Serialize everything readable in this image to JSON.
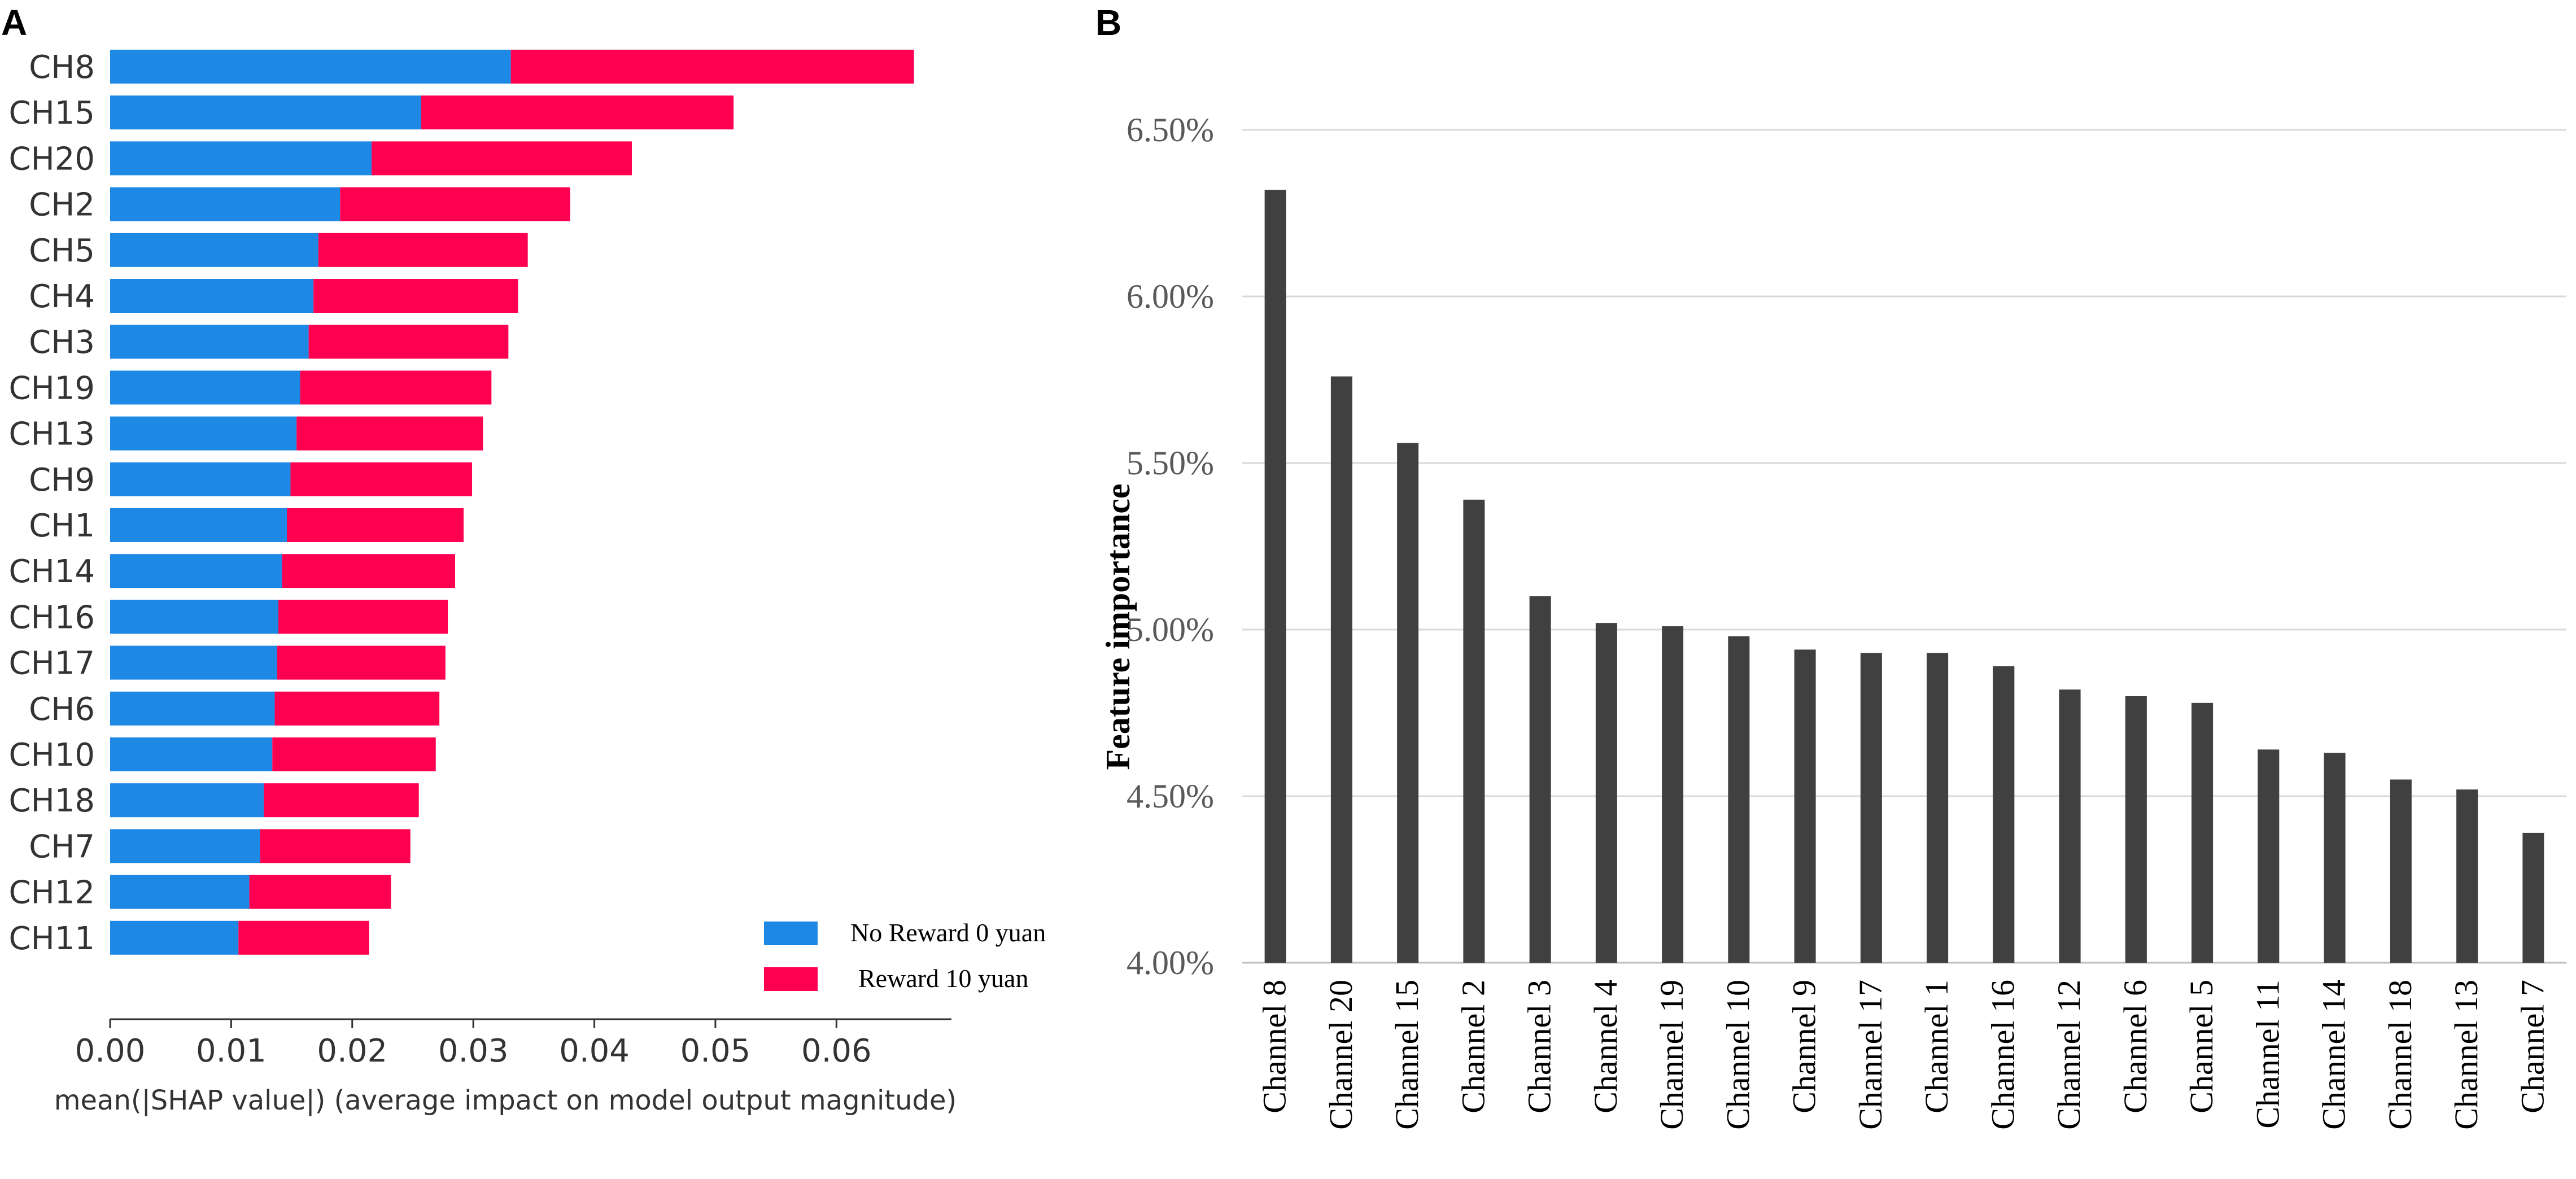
{
  "panels": {
    "a": "A",
    "b": "B"
  },
  "colors": {
    "no_reward": "#1E88E5",
    "reward": "#FF0051",
    "importance_bar": "#404040",
    "gridline": "#d9d9d9"
  },
  "chart_data": [
    {
      "id": "A",
      "type": "bar",
      "orientation": "horizontal",
      "stacked": true,
      "categories": [
        "CH8",
        "CH15",
        "CH20",
        "CH2",
        "CH5",
        "CH4",
        "CH3",
        "CH19",
        "CH13",
        "CH9",
        "CH1",
        "CH14",
        "CH16",
        "CH17",
        "CH6",
        "CH10",
        "CH18",
        "CH7",
        "CH12",
        "CH11"
      ],
      "series": [
        {
          "name": "No Reward 0 yuan",
          "values": [
            0.0331,
            0.0257,
            0.0216,
            0.019,
            0.0172,
            0.0168,
            0.0164,
            0.0157,
            0.0154,
            0.0149,
            0.0146,
            0.0142,
            0.0139,
            0.0138,
            0.0136,
            0.0134,
            0.0127,
            0.0124,
            0.0115,
            0.0106
          ]
        },
        {
          "name": "Reward 10 yuan",
          "values": [
            0.0333,
            0.0258,
            0.0215,
            0.019,
            0.0173,
            0.0169,
            0.0165,
            0.0158,
            0.0154,
            0.015,
            0.0146,
            0.0143,
            0.014,
            0.0139,
            0.0136,
            0.0135,
            0.0128,
            0.0124,
            0.0117,
            0.0108
          ]
        }
      ],
      "xlabel": "mean(|SHAP value|) (average impact on model output magnitude)",
      "xlim": [
        0,
        0.0695
      ],
      "xticks": [
        "0.00",
        "0.01",
        "0.02",
        "0.03",
        "0.04",
        "0.05",
        "0.06"
      ],
      "legend_position": "bottom-right"
    },
    {
      "id": "B",
      "type": "bar",
      "orientation": "vertical",
      "categories": [
        "Channel 8",
        "Channel 20",
        "Channel 15",
        "Channel 2",
        "Channel 3",
        "Channel 4",
        "Channel 19",
        "Channel 10",
        "Channel 9",
        "Channel 17",
        "Channel 1",
        "Channel 16",
        "Channel 12",
        "Channel 6",
        "Channel 5",
        "Channel 11",
        "Channel 14",
        "Channel 18",
        "Channel 13",
        "Channel 7"
      ],
      "values": [
        6.32,
        5.76,
        5.56,
        5.39,
        5.1,
        5.02,
        5.01,
        4.98,
        4.94,
        4.93,
        4.93,
        4.89,
        4.82,
        4.8,
        4.78,
        4.64,
        4.63,
        4.55,
        4.52,
        4.39
      ],
      "ylabel": "Feature importance",
      "ylim": [
        4.0,
        6.5
      ],
      "yticks": [
        "4.00%",
        "4.50%",
        "5.00%",
        "5.50%",
        "6.00%",
        "6.50%"
      ],
      "grid": true
    }
  ]
}
